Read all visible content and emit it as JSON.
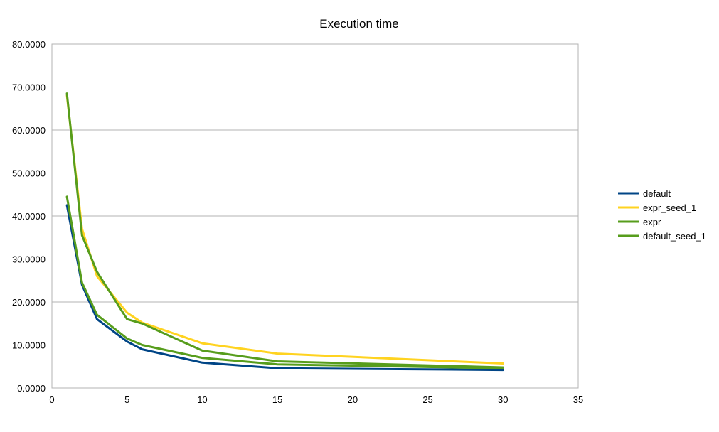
{
  "chart_data": {
    "type": "line",
    "title": "Execution time",
    "xlabel": "",
    "ylabel": "",
    "xlim": [
      0,
      35
    ],
    "ylim": [
      0,
      80
    ],
    "x_ticks": [
      0,
      5,
      10,
      15,
      20,
      25,
      30,
      35
    ],
    "y_ticks": [
      0,
      10,
      20,
      30,
      40,
      50,
      60,
      70,
      80
    ],
    "x_tick_labels": [
      "0",
      "5",
      "10",
      "15",
      "20",
      "25",
      "30",
      "35"
    ],
    "y_tick_labels": [
      "0.0000",
      "10.0000",
      "20.0000",
      "30.0000",
      "40.0000",
      "50.0000",
      "60.0000",
      "70.0000",
      "80.0000"
    ],
    "grid": "horizontal",
    "legend_position": "right",
    "series": [
      {
        "name": "default",
        "color": "#004586",
        "x": [
          1,
          2,
          3,
          5,
          6,
          10,
          15,
          30
        ],
        "y": [
          42.5,
          24.0,
          16.0,
          10.8,
          9.0,
          5.9,
          4.6,
          4.2
        ]
      },
      {
        "name": "expr_seed_1",
        "color": "#ffd320",
        "x": [
          1,
          2,
          3,
          5,
          6,
          10,
          15,
          30
        ],
        "y": [
          68.0,
          37.0,
          26.0,
          17.5,
          15.2,
          10.4,
          8.0,
          5.7
        ]
      },
      {
        "name": "expr",
        "color": "#579d1c",
        "x": [
          1,
          2,
          3,
          5,
          6,
          10,
          15,
          30
        ],
        "y": [
          44.5,
          24.5,
          17.0,
          11.5,
          10.0,
          7.0,
          5.5,
          4.6
        ]
      },
      {
        "name": "default_seed_1",
        "color": "#579d1c",
        "x": [
          1,
          2,
          3,
          5,
          6,
          10,
          15,
          30
        ],
        "y": [
          68.5,
          35.5,
          27.0,
          16.0,
          15.0,
          8.7,
          6.2,
          4.8
        ]
      }
    ]
  }
}
